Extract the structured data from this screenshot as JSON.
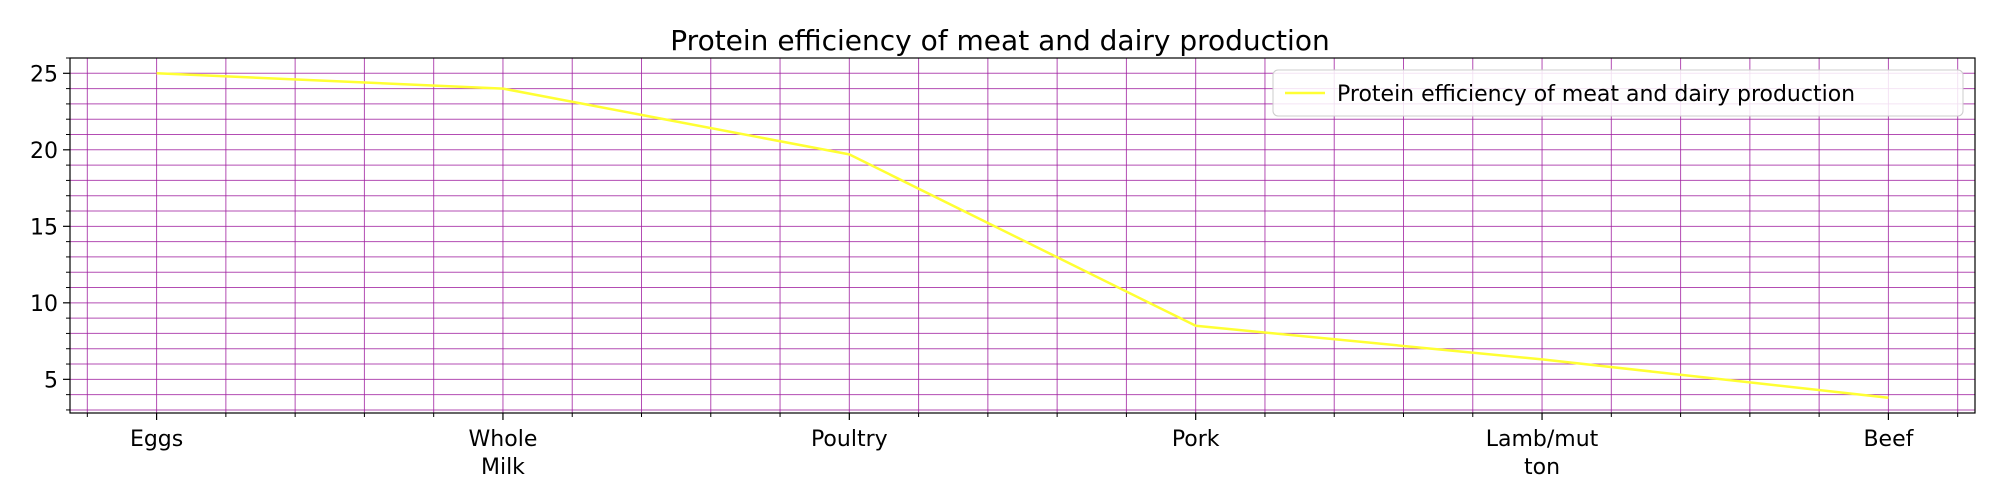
{
  "chart_data": {
    "type": "line",
    "title": "Protein efficiency of meat and dairy production",
    "xlabel": "",
    "ylabel": "",
    "categories": [
      "Eggs",
      "Whole Milk",
      "Poultry",
      "Pork",
      "Lamb/mutton",
      "Beef"
    ],
    "category_display": [
      [
        "Eggs"
      ],
      [
        "Whole",
        "Milk"
      ],
      [
        "Poultry"
      ],
      [
        "Pork"
      ],
      [
        "Lamb/mut",
        "ton"
      ],
      [
        "Beef"
      ]
    ],
    "series": [
      {
        "name": "Protein efficiency of meat and dairy production",
        "values": [
          25,
          24,
          19.7,
          8.5,
          6.3,
          3.8
        ],
        "color": "#ffff33"
      }
    ],
    "ylim": [
      2.8,
      26
    ],
    "xlim": [
      -0.25,
      5.25
    ],
    "yticks": [
      5,
      10,
      15,
      20,
      25
    ],
    "y_minor_step": 1,
    "x_minor_step": 0.2,
    "grid": true,
    "grid_color": "#a020a0",
    "legend_position": "top-right"
  }
}
